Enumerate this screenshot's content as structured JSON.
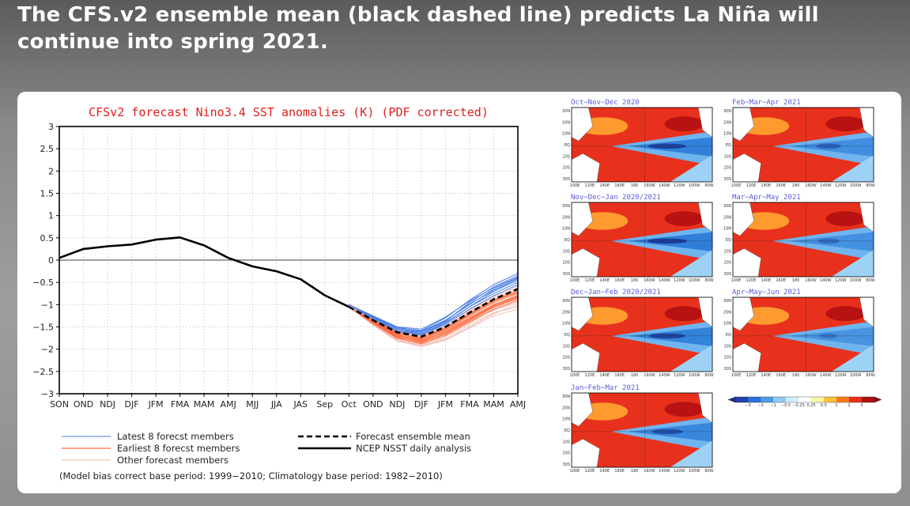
{
  "headline": "The CFS.v2 ensemble mean (black dashed line) predicts La Niña will continue into spring 2021.",
  "colors": {
    "title": "#e02020",
    "latest_members": "#4a7fe6",
    "earliest_members": "#ff6a3d",
    "other_members": "#f2b0a6",
    "ensemble_mean": "#000000",
    "analysis": "#000000",
    "warm_anomaly": "#e8311c",
    "cold_anomaly": "#2f7fd9"
  },
  "chart_data": {
    "type": "line",
    "title": "CFSv2 forecast Nino3.4 SST anomalies (K) (PDF corrected)",
    "categories": [
      "SON",
      "OND",
      "NDJ",
      "DJF",
      "JFM",
      "FMA",
      "MAM",
      "AMJ",
      "MJJ",
      "JJA",
      "JAS",
      "Sep",
      "Oct",
      "OND",
      "NDJ",
      "DJF",
      "JFM",
      "FMA",
      "MAM",
      "AMJ"
    ],
    "ylim": [
      -3,
      3
    ],
    "yticks": [
      "3",
      "2.5",
      "2",
      "1.5",
      "1",
      "0.5",
      "0",
      "−0.5",
      "−1",
      "−1.5",
      "−2",
      "−2.5",
      "−3"
    ],
    "grid": true,
    "legend_placement": "bottom-left",
    "series": [
      {
        "name": "NCEP NSST daily analysis",
        "style": "solid-black",
        "values": [
          0.05,
          0.25,
          0.31,
          0.35,
          0.46,
          0.51,
          0.33,
          0.05,
          -0.14,
          -0.25,
          -0.43,
          -0.79,
          -1.05,
          null,
          null,
          null,
          null,
          null,
          null,
          null
        ]
      },
      {
        "name": "Forecast ensemble mean",
        "style": "dashed-black",
        "values": [
          null,
          null,
          null,
          null,
          null,
          null,
          null,
          null,
          null,
          null,
          null,
          null,
          -1.05,
          -1.35,
          -1.62,
          -1.72,
          -1.5,
          -1.18,
          -0.88,
          -0.65
        ]
      },
      {
        "name": "Latest 8 forecest members",
        "style": "blue-thin",
        "members": [
          [
            -1.0,
            -1.25,
            -1.5,
            -1.6,
            -1.35,
            -1.0,
            -0.65,
            -0.4
          ],
          [
            -1.0,
            -1.28,
            -1.55,
            -1.65,
            -1.4,
            -1.05,
            -0.7,
            -0.45
          ],
          [
            -1.0,
            -1.3,
            -1.55,
            -1.62,
            -1.38,
            -0.95,
            -0.6,
            -0.35
          ],
          [
            -1.0,
            -1.27,
            -1.52,
            -1.58,
            -1.3,
            -0.9,
            -0.55,
            -0.3
          ],
          [
            -1.0,
            -1.32,
            -1.6,
            -1.68,
            -1.45,
            -1.1,
            -0.8,
            -0.55
          ],
          [
            -1.0,
            -1.26,
            -1.5,
            -1.55,
            -1.28,
            -0.92,
            -0.62,
            -0.38
          ],
          [
            -1.0,
            -1.3,
            -1.58,
            -1.66,
            -1.42,
            -1.05,
            -0.75,
            -0.5
          ],
          [
            -1.0,
            -1.29,
            -1.54,
            -1.61,
            -1.36,
            -0.98,
            -0.68,
            -0.42
          ]
        ]
      },
      {
        "name": "Earliest 8 forecest members",
        "style": "orange-thin",
        "members": [
          [
            -1.05,
            -1.38,
            -1.68,
            -1.8,
            -1.6,
            -1.3,
            -1.0,
            -0.8
          ],
          [
            -1.05,
            -1.4,
            -1.72,
            -1.85,
            -1.65,
            -1.35,
            -1.05,
            -0.85
          ],
          [
            -1.05,
            -1.35,
            -1.62,
            -1.75,
            -1.55,
            -1.22,
            -0.92,
            -0.72
          ],
          [
            -1.05,
            -1.42,
            -1.75,
            -1.88,
            -1.7,
            -1.4,
            -1.1,
            -0.9
          ],
          [
            -1.05,
            -1.36,
            -1.65,
            -1.78,
            -1.56,
            -1.25,
            -0.95,
            -0.75
          ],
          [
            -1.05,
            -1.39,
            -1.7,
            -1.82,
            -1.62,
            -1.32,
            -1.02,
            -0.82
          ],
          [
            -1.05,
            -1.37,
            -1.66,
            -1.76,
            -1.52,
            -1.2,
            -0.9,
            -0.7
          ],
          [
            -1.05,
            -1.41,
            -1.73,
            -1.84,
            -1.66,
            -1.36,
            -1.06,
            -0.86
          ]
        ]
      },
      {
        "name": "Other forecast members",
        "style": "pink-thin",
        "members": [
          [
            -1.05,
            -1.33,
            -1.6,
            -1.7,
            -1.52,
            -1.2,
            -0.9,
            -0.65
          ],
          [
            -1.05,
            -1.45,
            -1.8,
            -1.92,
            -1.78,
            -1.5,
            -1.2,
            -1.0
          ],
          [
            -1.05,
            -1.3,
            -1.55,
            -1.65,
            -1.45,
            -1.12,
            -0.82,
            -0.58
          ],
          [
            -1.05,
            -1.44,
            -1.78,
            -1.9,
            -1.75,
            -1.45,
            -1.18,
            -1.05
          ],
          [
            -1.05,
            -1.34,
            -1.63,
            -1.74,
            -1.58,
            -1.28,
            -1.0,
            -0.78
          ],
          [
            -1.05,
            -1.43,
            -1.76,
            -1.86,
            -1.68,
            -1.38,
            -1.1,
            -0.92
          ],
          [
            -1.05,
            -1.31,
            -1.58,
            -1.69,
            -1.49,
            -1.15,
            -0.85,
            -0.62
          ],
          [
            -1.05,
            -1.4,
            -1.7,
            -1.8,
            -1.63,
            -1.33,
            -1.04,
            -0.84
          ],
          [
            -1.05,
            -1.36,
            -1.64,
            -1.72,
            -1.54,
            -1.24,
            -0.96,
            -0.74
          ],
          [
            -1.05,
            -1.46,
            -1.82,
            -1.94,
            -1.8,
            -1.52,
            -1.25,
            -1.1
          ],
          [
            -1.05,
            -1.32,
            -1.61,
            -1.71,
            -1.51,
            -1.18,
            -0.88,
            -0.66
          ],
          [
            -1.05,
            -1.42,
            -1.74,
            -1.83,
            -1.67,
            -1.37,
            -1.12,
            -0.95
          ]
        ]
      }
    ]
  },
  "legend": {
    "latest": "Latest 8 forecst members",
    "earliest": "Earliest 8 forecst members",
    "other": "Other forecast members",
    "mean": "Forecast ensemble mean",
    "analysis": "NCEP NSST daily analysis",
    "footnote": "(Model bias correct base period: 1999−2010; Climatology base period: 1982−2010)"
  },
  "maps": [
    {
      "title": "Oct−Nov−Dec 2020",
      "cold_strength": 0.95
    },
    {
      "title": "Feb−Mar−Apr 2021",
      "cold_strength": 0.55
    },
    {
      "title": "Nov−Dec−Jan 2020/2021",
      "cold_strength": 1.0
    },
    {
      "title": "Mar−Apr−May 2021",
      "cold_strength": 0.45
    },
    {
      "title": "Dec−Jan−Feb 2020/2021",
      "cold_strength": 0.9
    },
    {
      "title": "Apr−May−Jun 2021",
      "cold_strength": 0.35
    },
    {
      "title": "Jan−Feb−Mar 2021",
      "cold_strength": 0.75
    }
  ],
  "map_axes": {
    "lat_labels": [
      "30N",
      "20N",
      "10N",
      "EQ",
      "10S",
      "20S",
      "30S"
    ],
    "lon_labels": [
      "100E",
      "120E",
      "140E",
      "160E",
      "180",
      "160W",
      "140W",
      "120W",
      "100W",
      "80W"
    ]
  },
  "colorbar": {
    "labels": [
      "−3",
      "−2",
      "−1",
      "−0.5",
      "−0.25",
      "0.25",
      "0.5",
      "1",
      "2",
      "3"
    ],
    "colors": [
      "#2140a8",
      "#2d6fd6",
      "#4b9be8",
      "#8ecbf5",
      "#cfeefb",
      "#ffffff",
      "#fff6a8",
      "#ffc23a",
      "#ff7a1e",
      "#e8311c",
      "#b01010"
    ]
  }
}
